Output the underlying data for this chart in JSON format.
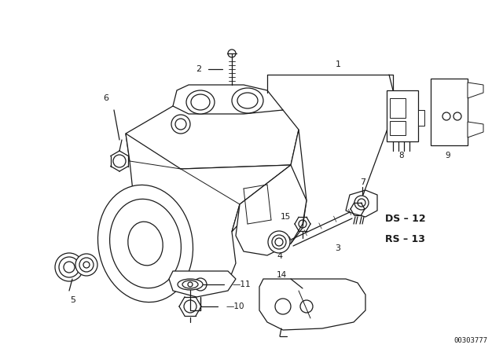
{
  "bg_color": "#ffffff",
  "line_color": "#1a1a1a",
  "fig_width": 6.4,
  "fig_height": 4.48,
  "dpi": 100,
  "part_number_code": "00303777",
  "ds_label": "DS – 12",
  "rs_label": "RS – 13"
}
